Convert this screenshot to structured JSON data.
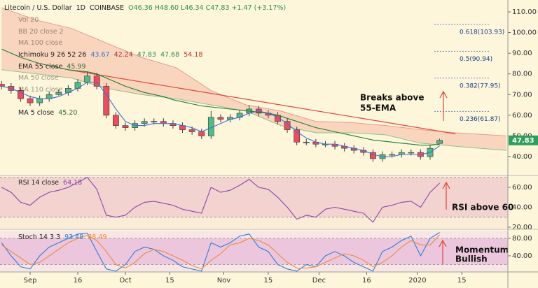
{
  "chart_data": [
    {
      "type": "candlestick",
      "title": "Litecoin / U.S. Dollar",
      "interval": "1D",
      "exchange": "COINBASE",
      "ohlc_text": "O46.36 H48.60 L46.34 C47.83 +1.47 (+3.17%)",
      "indicators": [
        {
          "name": "Vol 20",
          "hidden": true,
          "values": []
        },
        {
          "name": "BB 20 close 2",
          "hidden": true,
          "values": []
        },
        {
          "name": "MA 100 close",
          "hidden": true,
          "values": []
        },
        {
          "name": "Ichimoku 9 26 52 26",
          "hidden": false,
          "values": [
            "43.67",
            "42.24",
            "47.83",
            "47.68",
            "54.18"
          ]
        },
        {
          "name": "EMA 55 close",
          "hidden": false,
          "values": [
            "45.99"
          ]
        },
        {
          "name": "MA 50 close",
          "hidden": true,
          "values": []
        },
        {
          "name": "MA 110 close",
          "hidden": true,
          "values": []
        },
        {
          "name": "MA 5 close",
          "hidden": false,
          "values": [
            "45.20"
          ]
        }
      ],
      "x": [
        -9,
        -6,
        -3,
        0,
        3,
        6,
        9,
        12,
        15,
        18,
        21,
        24,
        27,
        30,
        33,
        36,
        39,
        42,
        45,
        48,
        51,
        54,
        57,
        60,
        63,
        66,
        69,
        72,
        75,
        78,
        81,
        84,
        87,
        90,
        93,
        96,
        99,
        102,
        105,
        108,
        111,
        114,
        117,
        120,
        123,
        126,
        129
      ],
      "open": [
        75,
        74,
        72,
        68,
        66,
        68,
        70,
        71,
        73,
        76,
        79,
        74,
        60,
        55,
        54,
        56,
        57,
        57,
        56,
        55,
        53,
        52,
        50,
        59,
        58,
        59,
        61,
        63,
        61,
        60,
        57,
        53,
        47,
        47,
        46,
        46,
        45,
        44,
        43,
        42,
        39,
        41,
        41,
        42,
        42,
        40,
        46.36
      ],
      "high": [
        76.5,
        75.5,
        73.5,
        69.5,
        69.5,
        71.5,
        72.5,
        74.5,
        77.5,
        81,
        80.5,
        75.5,
        61.5,
        56.5,
        57.5,
        58.5,
        58.5,
        58.5,
        57.5,
        56.5,
        54.5,
        53.5,
        62,
        60.5,
        60.5,
        62.5,
        65,
        64.5,
        62.5,
        61.5,
        58.5,
        54.5,
        48.5,
        48.5,
        47.5,
        47.5,
        46.5,
        45.5,
        44.5,
        43.5,
        42.5,
        42.5,
        43.5,
        43.5,
        43.5,
        45.5,
        48.6
      ],
      "low": [
        72.5,
        70.5,
        66.5,
        64.5,
        64.5,
        66.5,
        69.5,
        69.5,
        71.5,
        74.5,
        72.5,
        58.5,
        53.5,
        52.5,
        52.5,
        54.5,
        55.5,
        54.5,
        53.5,
        51.5,
        50.5,
        48.5,
        48.5,
        56.5,
        56.5,
        57.5,
        59.5,
        59.5,
        58.5,
        55.5,
        51.5,
        45.5,
        45.5,
        44.5,
        44.5,
        43.5,
        42.5,
        41.5,
        40.5,
        37.5,
        37.5,
        39.5,
        39.5,
        40.5,
        38.5,
        38.5,
        46.34
      ],
      "close": [
        74,
        72,
        68,
        66,
        68,
        70,
        71,
        73,
        76,
        79,
        74,
        60,
        55,
        54,
        56,
        57,
        57,
        56,
        55,
        53,
        52,
        50,
        59,
        58,
        59,
        61,
        63,
        61,
        60,
        57,
        53,
        47,
        47,
        46,
        46,
        45,
        44,
        43,
        42,
        39,
        41,
        41,
        42,
        42,
        40,
        44,
        47.83
      ],
      "up_color": "#53b987",
      "down_color": "#eb4d5c",
      "series": [
        {
          "name": "EMA 55",
          "color": "#1e7d32",
          "values": [
            92,
            90,
            88,
            86.5,
            85,
            84,
            83,
            82,
            81.5,
            81,
            80,
            78,
            76,
            74,
            72.5,
            71,
            70,
            69,
            67.5,
            66.5,
            65.5,
            64.5,
            64,
            63.5,
            63,
            62.5,
            62,
            61.5,
            61,
            60,
            58.5,
            57,
            55.5,
            54,
            53,
            52,
            51,
            50,
            49,
            48,
            47.5,
            47,
            46.5,
            46,
            45.5,
            45.5,
            45.99
          ]
        },
        {
          "name": "MA 5",
          "color": "#3d6fd9",
          "values": [
            74,
            73,
            71,
            69,
            68,
            68,
            69,
            71,
            73,
            76,
            76,
            70,
            63,
            57,
            55,
            55,
            56,
            56,
            56,
            55,
            54,
            52,
            54,
            56,
            58,
            59,
            61,
            62,
            61,
            59,
            56,
            52,
            49,
            47,
            46,
            46,
            45,
            44,
            43,
            41,
            40,
            40,
            41,
            41,
            41,
            42,
            45.2
          ]
        }
      ],
      "cloud": {
        "x": [
          -9,
          2,
          13,
          24,
          35,
          46,
          57,
          68,
          79,
          90,
          101,
          112,
          123,
          134,
          150
        ],
        "upper": [
          112,
          106,
          102,
          95,
          88,
          83,
          72,
          65,
          62,
          57,
          56.5,
          55,
          53,
          51.5,
          50
        ],
        "lower": [
          82,
          80,
          78,
          73,
          70,
          68,
          65,
          62,
          55,
          51.5,
          51.5,
          50.5,
          46.5,
          45,
          43
        ],
        "color": "#f7b9a8"
      },
      "trendline": {
        "x": [
          12,
          134
        ],
        "values": [
          82,
          51
        ],
        "color": "#e0453a"
      },
      "fib_levels": [
        {
          "label": "0.618(103.93)",
          "value": 103.93
        },
        {
          "label": "0.5(90.94)",
          "value": 90.94
        },
        {
          "label": "0.382(77.95)",
          "value": 77.95
        },
        {
          "label": "0.236(61.87)",
          "value": 61.87
        }
      ],
      "last_price": {
        "value": 47.83,
        "color": "#2e9e5b"
      },
      "annotation": [
        "Breaks above",
        "55-EMA"
      ],
      "xlim": [
        -9.5,
        150.5
      ],
      "xticks": [
        {
          "value": 0,
          "label": "Sep"
        },
        {
          "value": 15,
          "label": "16"
        },
        {
          "value": 30,
          "label": "Oct"
        },
        {
          "value": 44,
          "label": "15"
        },
        {
          "value": 61,
          "label": "Nov"
        },
        {
          "value": 75,
          "label": "15"
        },
        {
          "value": 91,
          "label": "Dec"
        },
        {
          "value": 106,
          "label": "16"
        },
        {
          "value": 122,
          "label": "2020"
        },
        {
          "value": 136,
          "label": "15"
        }
      ],
      "ylim": [
        31.2,
        115.75
      ],
      "yticks": [
        {
          "value": 110,
          "label": "110.00"
        },
        {
          "value": 100,
          "label": "100.00"
        },
        {
          "value": 90,
          "label": "90.00"
        },
        {
          "value": 80,
          "label": "80.00"
        },
        {
          "value": 70,
          "label": "70.00"
        },
        {
          "value": 60,
          "label": "60.00"
        },
        {
          "value": 50,
          "label": "50.00"
        },
        {
          "value": 40,
          "label": "40.00"
        }
      ]
    },
    {
      "type": "line",
      "title": "RSI 14 close",
      "value_text": "64.18",
      "series": [
        {
          "name": "RSI",
          "color": "#8e44ad",
          "values": [
            60,
            55,
            45,
            42,
            50,
            55,
            57,
            60,
            65,
            70,
            58,
            32,
            30,
            32,
            40,
            45,
            46,
            44,
            42,
            38,
            36,
            34,
            60,
            55,
            57,
            62,
            68,
            60,
            58,
            50,
            40,
            28,
            32,
            30,
            38,
            40,
            38,
            36,
            34,
            25,
            40,
            42,
            45,
            46,
            40,
            55,
            64.18
          ]
        }
      ],
      "band": [
        30,
        70
      ],
      "band_color": "#f2d3cf",
      "annotation": [
        "RSI above 60"
      ],
      "ylim": [
        19.3,
        71.2
      ],
      "yticks": [
        {
          "value": 60,
          "label": "60.00"
        },
        {
          "value": 40,
          "label": "40.00"
        },
        {
          "value": 20,
          "label": "20.00"
        }
      ]
    },
    {
      "type": "line",
      "title": "Stoch 14 3 3",
      "value_text": [
        "93.48",
        "88.49"
      ],
      "series": [
        {
          "name": "%K",
          "color": "#2f7fd6",
          "values": [
            70,
            40,
            15,
            10,
            40,
            60,
            70,
            80,
            90,
            92,
            50,
            10,
            5,
            20,
            50,
            60,
            55,
            40,
            30,
            15,
            10,
            5,
            70,
            60,
            70,
            85,
            90,
            60,
            50,
            20,
            10,
            5,
            20,
            15,
            40,
            50,
            40,
            25,
            15,
            5,
            50,
            60,
            75,
            85,
            40,
            80,
            93.48
          ]
        },
        {
          "name": "%D",
          "color": "#f08a3c",
          "values": [
            65,
            50,
            35,
            20,
            25,
            40,
            55,
            70,
            80,
            87,
            75,
            50,
            20,
            12,
            25,
            45,
            55,
            50,
            40,
            30,
            18,
            10,
            30,
            45,
            65,
            70,
            80,
            75,
            65,
            45,
            25,
            12,
            12,
            15,
            25,
            35,
            45,
            40,
            30,
            15,
            25,
            40,
            60,
            75,
            65,
            65,
            88.49
          ]
        }
      ],
      "band": [
        20,
        80
      ],
      "band_color": "#ecc6dc",
      "annotation": [
        "Momentum",
        "Bullish"
      ],
      "ylim": [
        4.8,
        97.6
      ],
      "yticks": [
        {
          "value": 80,
          "label": "80.00"
        },
        {
          "value": 40,
          "label": "40.00"
        }
      ]
    }
  ]
}
